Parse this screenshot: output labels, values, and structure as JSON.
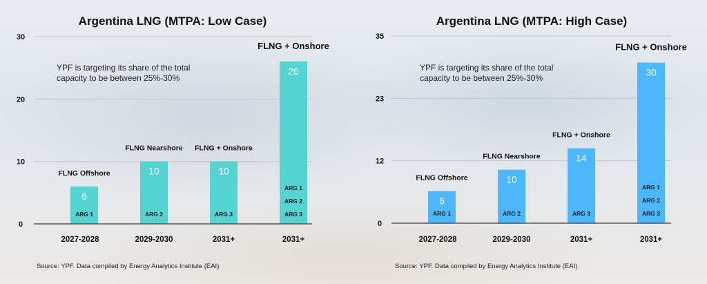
{
  "chart_data": [
    {
      "type": "bar",
      "title": "Argentina LNG (MTPA: Low Case)",
      "categories": [
        "2027-2028",
        "2029-2030",
        "2031+",
        "2031+"
      ],
      "values": [
        6,
        10,
        10,
        26
      ],
      "value_labels": [
        "6",
        "10",
        "10",
        "26"
      ],
      "bar_annotations": [
        "FLNG Offshore",
        "FLNG Nearshore",
        "FLNG + Onshore",
        "FLNG + Onshore"
      ],
      "inner_labels": [
        [
          "ARG 1"
        ],
        [
          "ARG 2"
        ],
        [
          "ARG 3"
        ],
        [
          "ARG 1",
          "ARG 2",
          "ARG 3"
        ]
      ],
      "note_lines": [
        "YPF is targeting its share of the total",
        "capacity to be between 25%-30%"
      ],
      "source": "Source: YPF. Data compiled by Energy Analytics Institute (EAI)",
      "ylim": [
        0,
        30
      ],
      "yticks": [
        0,
        10,
        20,
        30
      ],
      "ytick_labels": [
        "0",
        "10",
        "20",
        "30"
      ],
      "grid": true,
      "color": "#55d3d1"
    },
    {
      "type": "bar",
      "title": "Argentina LNG (MTPA: High Case)",
      "categories": [
        "2027-2028",
        "2029-2030",
        "2031+",
        "2031+"
      ],
      "values": [
        6,
        10,
        14,
        30
      ],
      "value_labels": [
        "6",
        "10",
        "14",
        "30"
      ],
      "bar_annotations": [
        "FLNG Offshore",
        "FLNG Nearshore",
        "FLNG + Onshore",
        "FLNG + Onshore"
      ],
      "inner_labels": [
        [
          "ARG 1"
        ],
        [
          "ARG 2"
        ],
        [
          "ARG 3"
        ],
        [
          "ARG 1",
          "ARG 2",
          "ARG 3"
        ]
      ],
      "note_lines": [
        "YPF is targeting its share of the total",
        "capacity to be between 25%-30%"
      ],
      "source": "Source: YPF. Data compiled by Energy Analytics Institute (EAI)",
      "ylim": [
        0,
        35
      ],
      "yticks": [
        0,
        11.67,
        23.33,
        35
      ],
      "ytick_labels": [
        "0",
        "12",
        "23",
        "35"
      ],
      "grid": true,
      "color": "#4cb8fb"
    }
  ]
}
